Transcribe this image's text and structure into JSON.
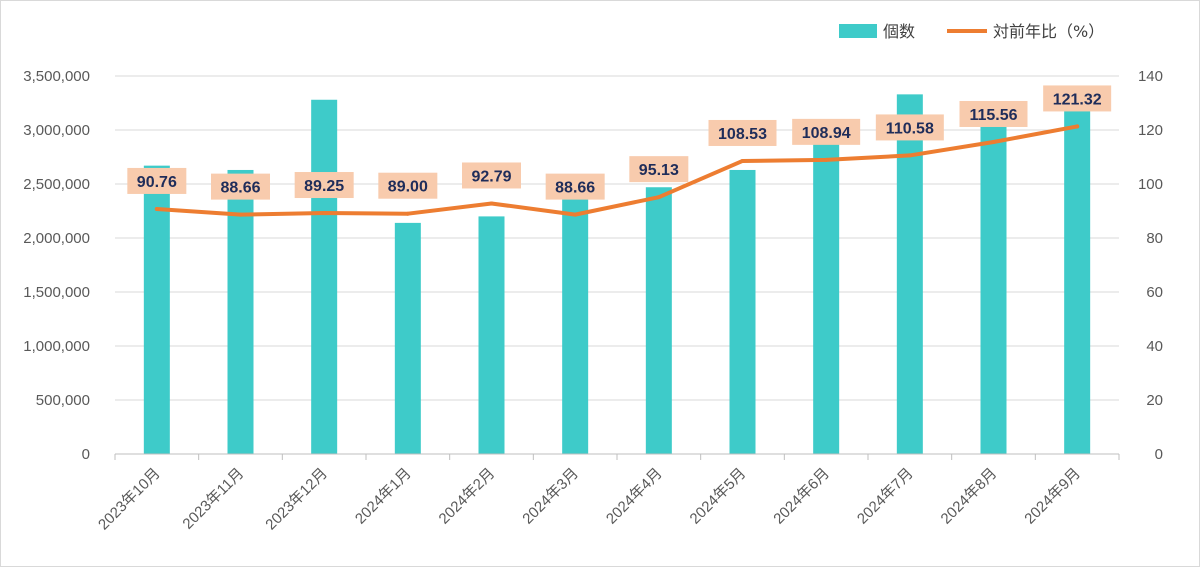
{
  "chart_data": {
    "type": "bar",
    "categories": [
      "2023年10月",
      "2023年11月",
      "2023年12月",
      "2024年1月",
      "2024年2月",
      "2024年3月",
      "2024年4月",
      "2024年5月",
      "2024年6月",
      "2024年7月",
      "2024年8月",
      "2024年9月"
    ],
    "series": [
      {
        "name": "個数",
        "type": "bar",
        "axis": "left",
        "color": "#3ecbc9",
        "values": [
          2670000,
          2630000,
          3280000,
          2140000,
          2200000,
          2390000,
          2470000,
          2630000,
          2920000,
          3330000,
          3140000,
          3220000
        ]
      },
      {
        "name": "対前年比（%）",
        "type": "line",
        "axis": "right",
        "color": "#ed7d31",
        "values": [
          90.76,
          88.66,
          89.25,
          89.0,
          92.79,
          88.66,
          95.13,
          108.53,
          108.94,
          110.58,
          115.56,
          121.32
        ],
        "labels": [
          "90.76",
          "88.66",
          "89.25",
          "89.00",
          "92.79",
          "88.66",
          "95.13",
          "108.53",
          "108.94",
          "110.58",
          "115.56",
          "121.32"
        ],
        "label_bg": "#f8cbad"
      }
    ],
    "y_left": {
      "ylim": [
        0,
        3500000
      ],
      "ticks": [
        0,
        500000,
        1000000,
        1500000,
        2000000,
        2500000,
        3000000,
        3500000
      ],
      "tick_labels": [
        "0",
        "500,000",
        "1,000,000",
        "1,500,000",
        "2,000,000",
        "2,500,000",
        "3,000,000",
        "3,500,000"
      ]
    },
    "y_right": {
      "ylim": [
        0,
        140
      ],
      "ticks": [
        0,
        20,
        40,
        60,
        80,
        100,
        120,
        140
      ],
      "tick_labels": [
        "0",
        "20",
        "40",
        "60",
        "80",
        "100",
        "120",
        "140"
      ]
    },
    "grid": true,
    "legend": "top-right",
    "title": "",
    "xlabel": "",
    "ylabel": ""
  }
}
